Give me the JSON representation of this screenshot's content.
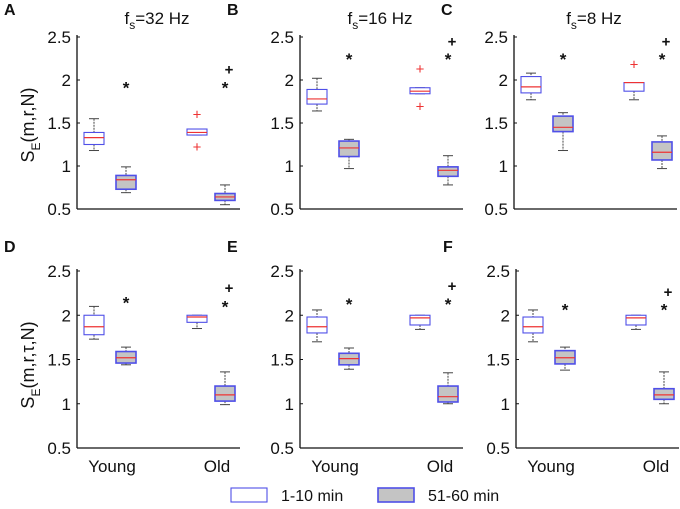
{
  "chart_data": {
    "type": "box",
    "ylim": [
      0.5,
      2.5
    ],
    "yticks": [
      "0.5",
      "1",
      "1.5",
      "2",
      "2.5"
    ],
    "categories": [
      "Young",
      "Old"
    ],
    "legend": {
      "position": "bottom-center",
      "entries": [
        {
          "label": "1-10 min",
          "fill": "#ffffff",
          "stroke": "#4f4fe8"
        },
        {
          "label": "51-60 min",
          "fill": "#c4c4c4",
          "stroke": "#4f4fe8"
        }
      ]
    },
    "colors": {
      "box": "#4f4fe8",
      "median": "#ee3333",
      "outlier": "#ee3333",
      "whisker": "#444444"
    },
    "rows": [
      {
        "ylabel": "S",
        "ylabel_sub": "E",
        "ylabel_rest": "(m,r,N)"
      },
      {
        "ylabel": "S",
        "ylabel_sub": "E",
        "ylabel_rest": "(m,r,τ,N)"
      }
    ],
    "panels": [
      {
        "letter": "A",
        "title_main": "f",
        "title_sub": "s",
        "title_rest": "=32 Hz",
        "row": 0,
        "boxes": [
          {
            "group": "Young",
            "period": "1-10 min",
            "min": 1.18,
            "q1": 1.25,
            "median": 1.33,
            "q3": 1.39,
            "max": 1.55,
            "outliers": []
          },
          {
            "group": "Young",
            "period": "51-60 min",
            "min": 0.69,
            "q1": 0.73,
            "median": 0.84,
            "q3": 0.89,
            "max": 0.99,
            "outliers": [],
            "star": 1.95
          },
          {
            "group": "Old",
            "period": "1-10 min",
            "min": 1.36,
            "q1": 1.36,
            "median": 1.39,
            "q3": 1.43,
            "max": 1.43,
            "outliers": [
              1.6,
              1.22
            ]
          },
          {
            "group": "Old",
            "period": "51-60 min",
            "min": 0.55,
            "q1": 0.6,
            "median": 0.64,
            "q3": 0.68,
            "max": 0.78,
            "outliers": [],
            "star": 1.95,
            "plus": 2.12
          }
        ]
      },
      {
        "letter": "B",
        "title_main": "f",
        "title_sub": "s",
        "title_rest": "=16 Hz",
        "row": 0,
        "boxes": [
          {
            "group": "Young",
            "period": "1-10 min",
            "min": 1.64,
            "q1": 1.72,
            "median": 1.78,
            "q3": 1.89,
            "max": 2.02,
            "outliers": []
          },
          {
            "group": "Young",
            "period": "51-60 min",
            "min": 0.97,
            "q1": 1.11,
            "median": 1.21,
            "q3": 1.29,
            "max": 1.31,
            "outliers": [],
            "star": 2.28
          },
          {
            "group": "Old",
            "period": "1-10 min",
            "min": 1.84,
            "q1": 1.84,
            "median": 1.87,
            "q3": 1.91,
            "max": 1.91,
            "outliers": [
              2.13,
              1.69
            ]
          },
          {
            "group": "Old",
            "period": "51-60 min",
            "min": 0.78,
            "q1": 0.88,
            "median": 0.95,
            "q3": 0.99,
            "max": 1.12,
            "outliers": [],
            "star": 2.28,
            "plus": 2.45
          }
        ]
      },
      {
        "letter": "C",
        "title_main": "f",
        "title_sub": "s",
        "title_rest": "=8 Hz",
        "row": 0,
        "boxes": [
          {
            "group": "Young",
            "period": "1-10 min",
            "min": 1.77,
            "q1": 1.85,
            "median": 1.92,
            "q3": 2.04,
            "max": 2.08,
            "outliers": []
          },
          {
            "group": "Young",
            "period": "51-60 min",
            "min": 1.18,
            "q1": 1.4,
            "median": 1.45,
            "q3": 1.58,
            "max": 1.62,
            "outliers": [],
            "star": 2.28
          },
          {
            "group": "Old",
            "period": "1-10 min",
            "min": 1.77,
            "q1": 1.87,
            "median": 1.97,
            "q3": 1.97,
            "max": 1.97,
            "outliers": [
              2.18
            ]
          },
          {
            "group": "Old",
            "period": "51-60 min",
            "min": 0.97,
            "q1": 1.07,
            "median": 1.16,
            "q3": 1.28,
            "max": 1.35,
            "outliers": [],
            "star": 2.28,
            "plus": 2.45
          }
        ]
      },
      {
        "letter": "D",
        "row": 1,
        "boxes": [
          {
            "group": "Young",
            "period": "1-10 min",
            "min": 1.73,
            "q1": 1.78,
            "median": 1.87,
            "q3": 2.0,
            "max": 2.1,
            "outliers": []
          },
          {
            "group": "Young",
            "period": "51-60 min",
            "min": 1.44,
            "q1": 1.46,
            "median": 1.52,
            "q3": 1.59,
            "max": 1.64,
            "outliers": [],
            "star": 2.18
          },
          {
            "group": "Old",
            "period": "1-10 min",
            "min": 1.85,
            "q1": 1.92,
            "median": 1.98,
            "q3": 2.0,
            "max": 2.0,
            "outliers": []
          },
          {
            "group": "Old",
            "period": "51-60 min",
            "min": 0.99,
            "q1": 1.03,
            "median": 1.1,
            "q3": 1.2,
            "max": 1.36,
            "outliers": [],
            "star": 2.13,
            "plus": 2.31
          }
        ]
      },
      {
        "letter": "E",
        "row": 1,
        "boxes": [
          {
            "group": "Young",
            "period": "1-10 min",
            "min": 1.7,
            "q1": 1.8,
            "median": 1.87,
            "q3": 1.98,
            "max": 2.06,
            "outliers": []
          },
          {
            "group": "Young",
            "period": "51-60 min",
            "min": 1.39,
            "q1": 1.44,
            "median": 1.51,
            "q3": 1.57,
            "max": 1.63,
            "outliers": [],
            "star": 2.16
          },
          {
            "group": "Old",
            "period": "1-10 min",
            "min": 1.84,
            "q1": 1.89,
            "median": 1.97,
            "q3": 2.0,
            "max": 2.0,
            "outliers": []
          },
          {
            "group": "Old",
            "period": "51-60 min",
            "min": 1.0,
            "q1": 1.02,
            "median": 1.08,
            "q3": 1.2,
            "max": 1.35,
            "outliers": [],
            "star": 2.16,
            "plus": 2.33
          }
        ]
      },
      {
        "letter": "F",
        "row": 1,
        "boxes": [
          {
            "group": "Young",
            "period": "1-10 min",
            "min": 1.7,
            "q1": 1.8,
            "median": 1.87,
            "q3": 1.98,
            "max": 2.06,
            "outliers": []
          },
          {
            "group": "Young",
            "period": "51-60 min",
            "min": 1.38,
            "q1": 1.45,
            "median": 1.52,
            "q3": 1.6,
            "max": 1.64,
            "outliers": [],
            "star": 2.1
          },
          {
            "group": "Old",
            "period": "1-10 min",
            "min": 1.84,
            "q1": 1.89,
            "median": 1.97,
            "q3": 2.0,
            "max": 2.0,
            "outliers": []
          },
          {
            "group": "Old",
            "period": "51-60 min",
            "min": 1.0,
            "q1": 1.05,
            "median": 1.1,
            "q3": 1.17,
            "max": 1.36,
            "outliers": [],
            "star": 2.1,
            "plus": 2.26
          }
        ]
      }
    ]
  }
}
